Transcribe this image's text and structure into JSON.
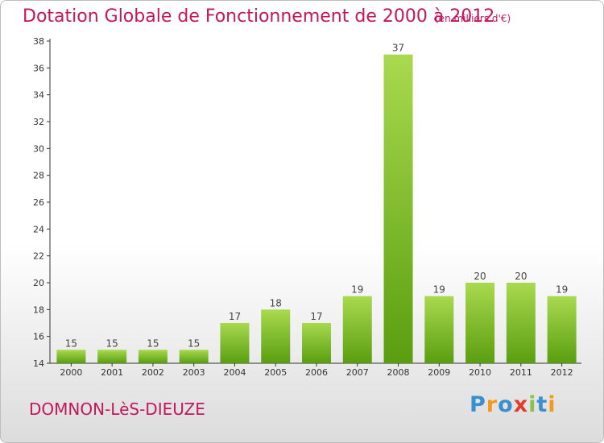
{
  "title": "Dotation Globale de Fonctionnement de 2000 à 2012",
  "subtitle": "(en milliers d'€)",
  "city": "DOMNON-LèS-DIEUZE",
  "logo": {
    "text": "Proxiti",
    "letters": [
      "P",
      "r",
      "o",
      "x",
      "i",
      "t",
      "i"
    ],
    "colors": [
      "#3a8fd0",
      "#f39a1e",
      "#3a8fd0",
      "#e53a2a",
      "#8bc34a",
      "#3a8fd0",
      "#f39a1e"
    ]
  },
  "colors": {
    "title": "#c2185b",
    "bar_top": "#a9d94f",
    "bar_bottom": "#5a9e10",
    "axis": "#333333"
  },
  "chart_data": {
    "type": "bar",
    "categories": [
      "2000",
      "2001",
      "2002",
      "2003",
      "2004",
      "2005",
      "2006",
      "2007",
      "2008",
      "2009",
      "2010",
      "2011",
      "2012"
    ],
    "values": [
      15,
      15,
      15,
      15,
      17,
      18,
      17,
      19,
      37,
      19,
      20,
      20,
      19
    ],
    "ylim": [
      14,
      38
    ],
    "yticks": [
      14,
      16,
      18,
      20,
      22,
      24,
      26,
      28,
      30,
      32,
      34,
      36,
      38
    ],
    "grid": false,
    "xlabel": "",
    "ylabel": ""
  }
}
